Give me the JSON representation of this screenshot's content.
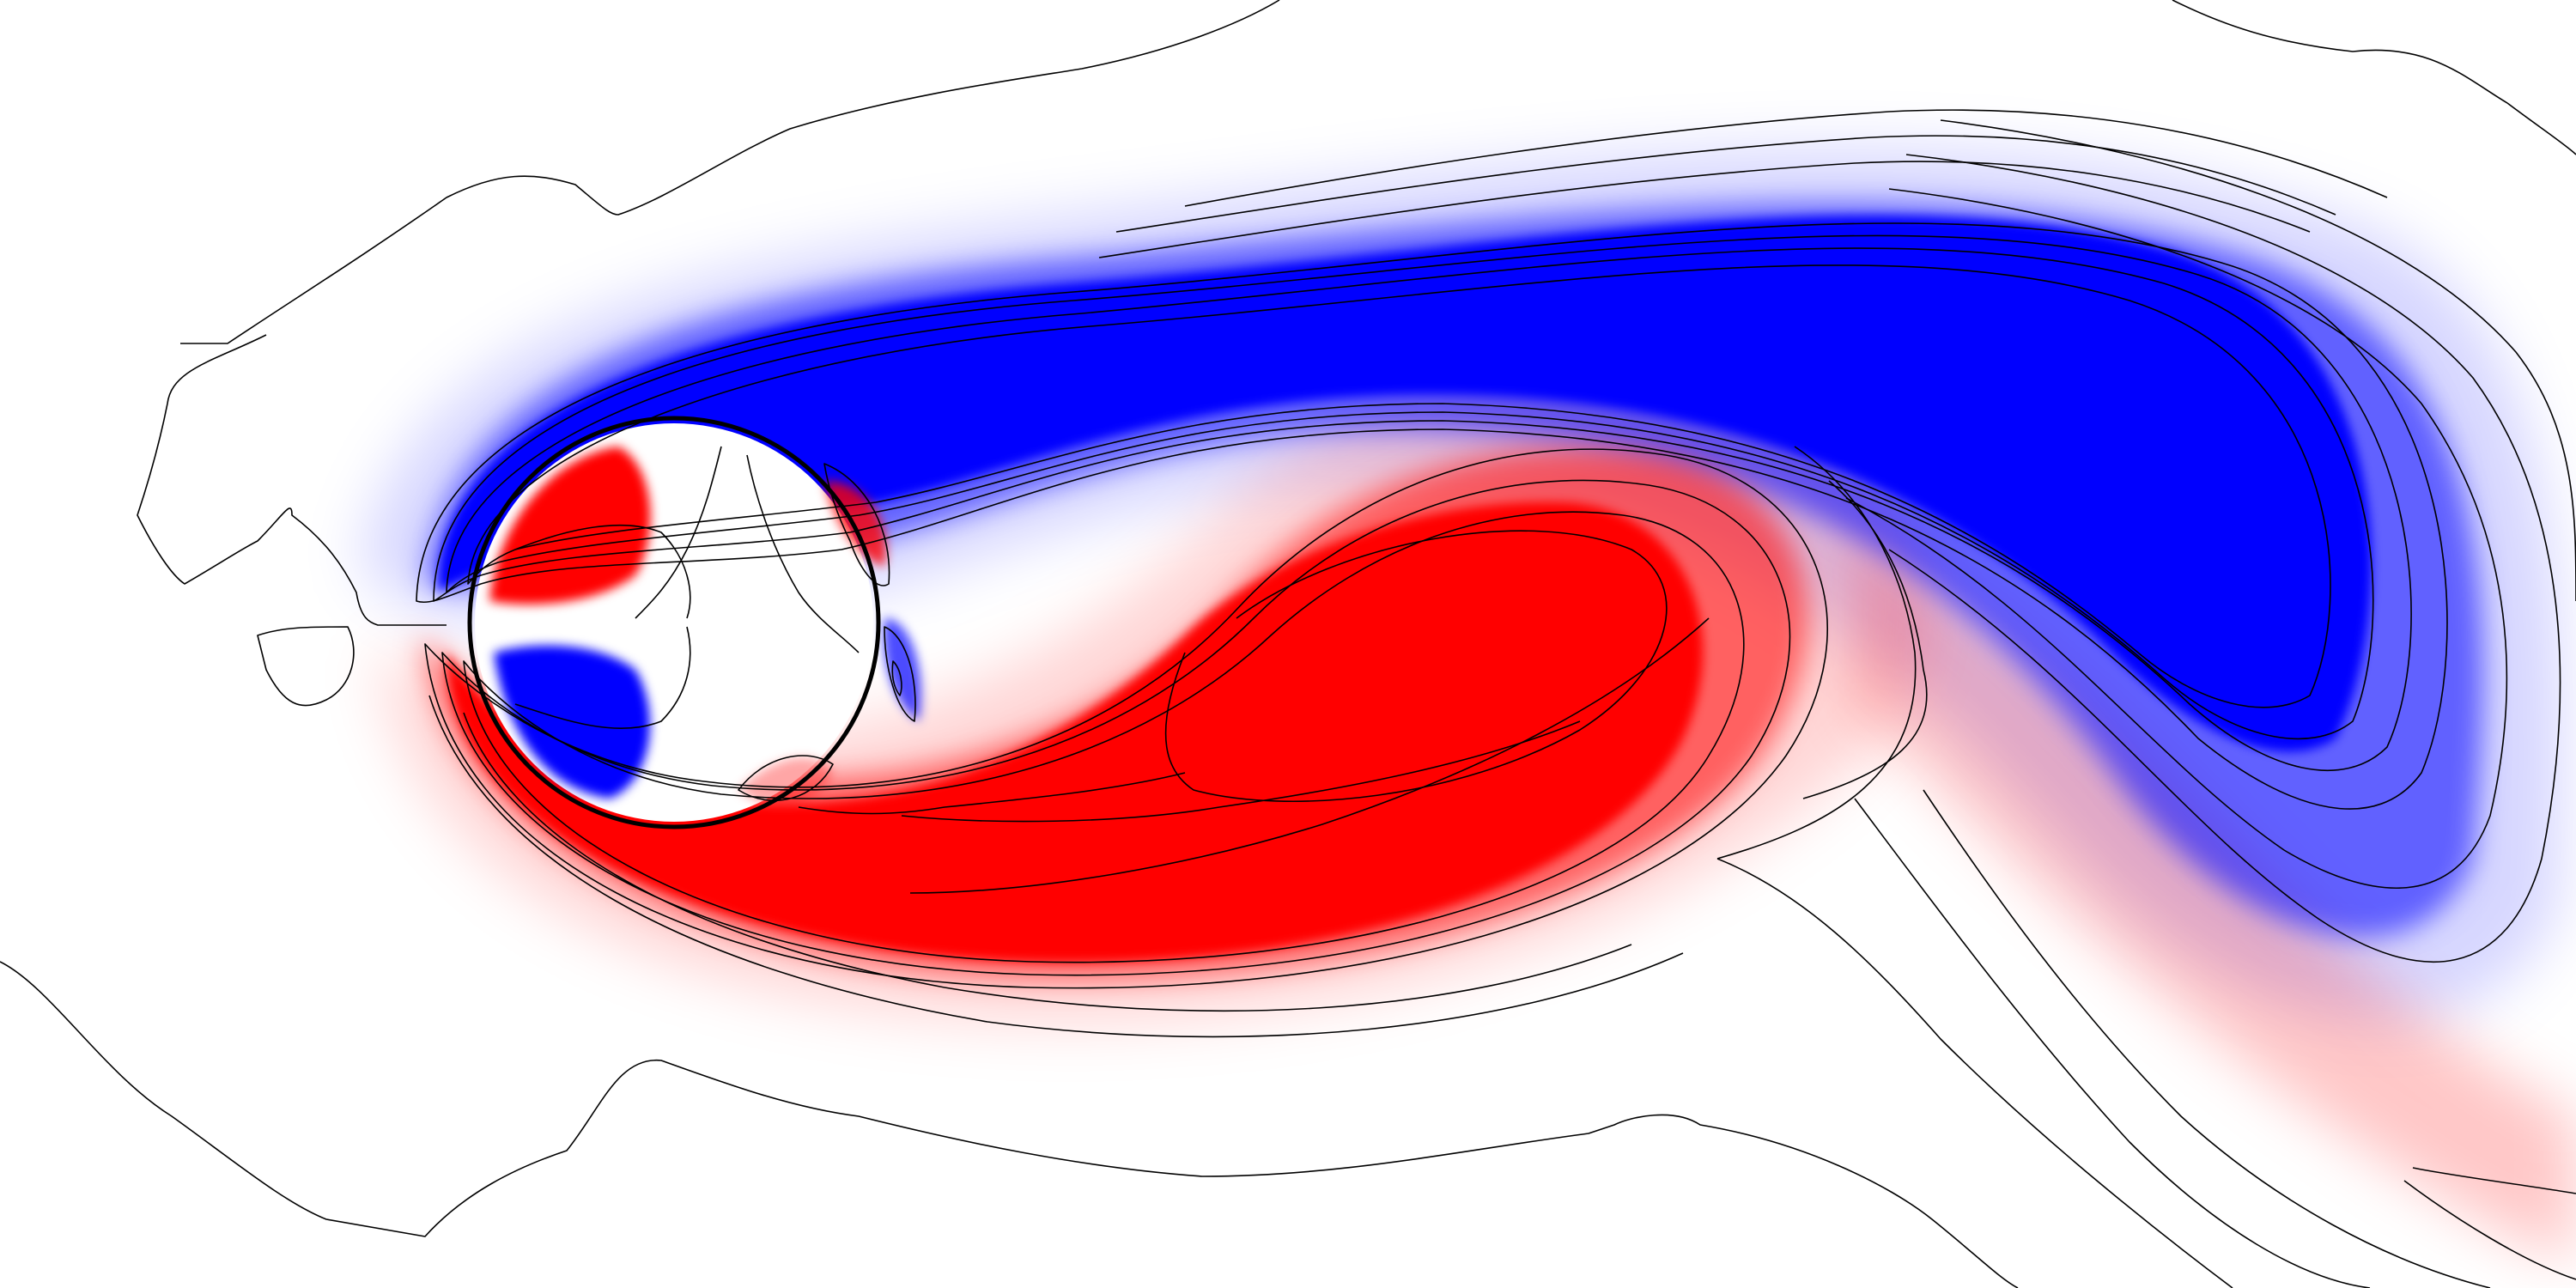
{
  "figure": {
    "kind": "vorticity field of flow past a circular cylinder",
    "colormap": {
      "positive": "#ff0000",
      "negative": "#0000ff",
      "zero": "#ffffff"
    },
    "contour_color": "#000000",
    "has_text": false
  }
}
